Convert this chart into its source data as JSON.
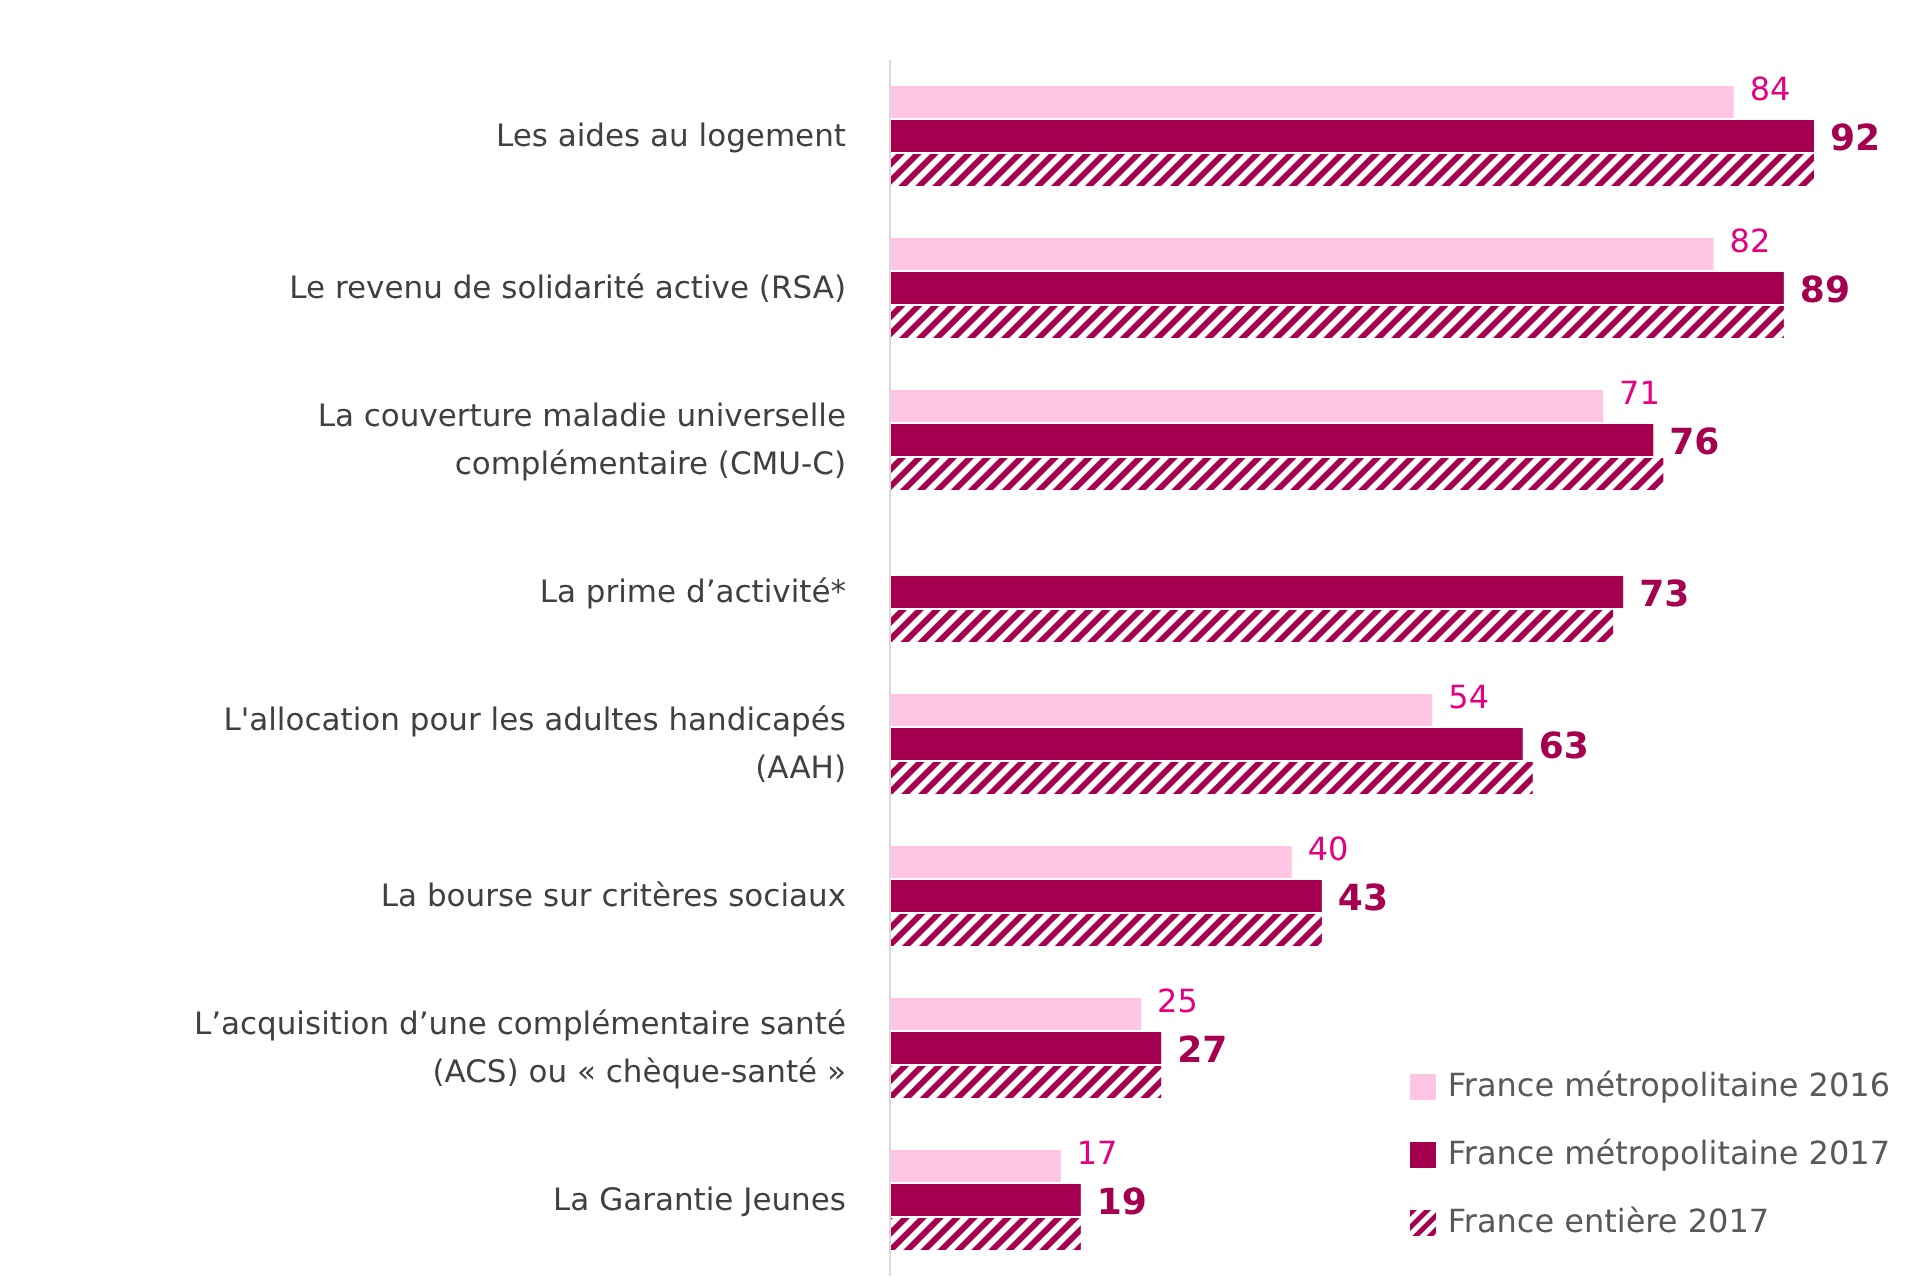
{
  "chart_data": {
    "type": "bar",
    "orientation": "horizontal",
    "legend": "bottom right",
    "tick_labels": "y",
    "categories": [
      "Les aides au logement",
      "Le revenu de solidarité active (RSA)",
      "La couverture maladie universelle complémentaire (CMU-C)",
      "La prime d’activité*",
      "L'allocation pour les adultes handicapés (AAH)",
      "La bourse sur critères sociaux",
      "L’acquisition d’une complémentaire santé (ACS) ou « chèque-santé »",
      "La Garantie Jeunes"
    ],
    "series": [
      {
        "name": "France métropolitaine 2016",
        "color": "#ffc5e3",
        "values": [
          84,
          82,
          71,
          null,
          54,
          40,
          25,
          17
        ],
        "value_labels": [
          "84",
          "82",
          "71",
          null,
          "54",
          "40",
          "25",
          "17"
        ]
      },
      {
        "name": "France métropolitaine 2017",
        "color": "#a50050",
        "values": [
          92,
          89,
          76,
          73,
          63,
          43,
          27,
          19
        ],
        "value_labels": [
          "92",
          "89",
          "76",
          "73",
          "63",
          "43",
          "27",
          "19"
        ]
      },
      {
        "name": "France entière 2017",
        "color": "#a50050",
        "values": [
          92,
          89,
          77,
          72,
          64,
          43,
          27,
          19
        ]
      }
    ]
  }
}
